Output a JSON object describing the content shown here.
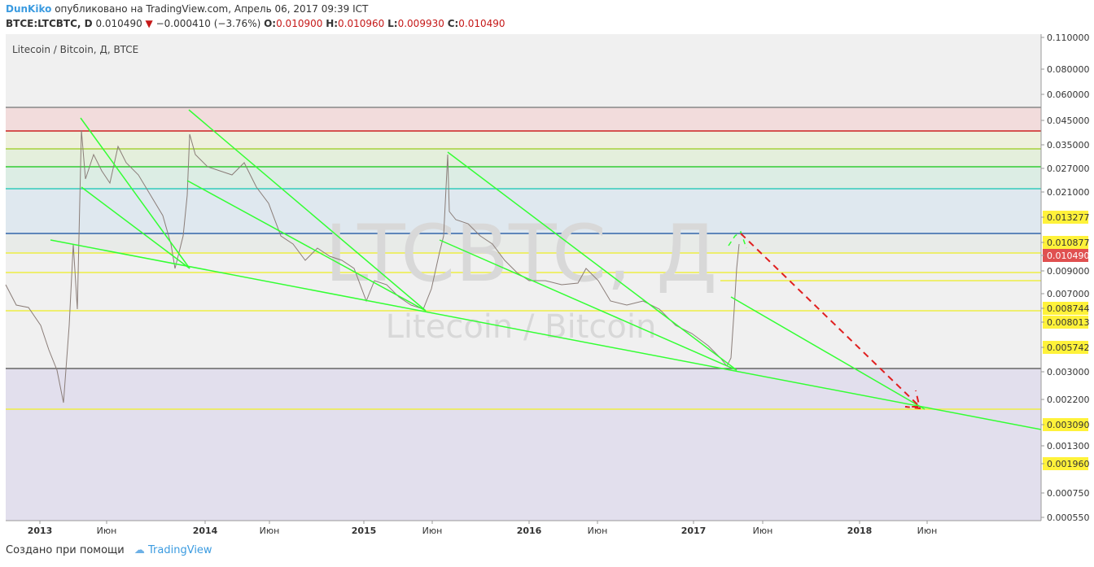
{
  "header": {
    "author": "DunKiko",
    "published": "опубликовано на TradingView.com, Апрель 06, 2017 09:39 ICT",
    "symbol": "BTCE:LTCBTC, D",
    "last": "0.010490",
    "change": "−0.000410 (−3.76%)",
    "open_label": "O:",
    "open": "0.010900",
    "high_label": "H:",
    "high": "0.010960",
    "low_label": "L:",
    "low": "0.009930",
    "close_label": "C:",
    "close": "0.010490"
  },
  "chart": {
    "legend": "Litecoin / Bitcoin, Д, BTCE",
    "watermark": "LTCBTC, Д",
    "watermark_sub": "Litecoin / Bitcoin",
    "price_labels": [
      "0.110000",
      "0.080000",
      "0.060000",
      "0.045000",
      "0.035000",
      "0.027000",
      "0.021000",
      "0.013277",
      "0.010877",
      "0.010490",
      "0.009000",
      "0.007000",
      "0.008744",
      "0.008013",
      "0.005742",
      "0.003000",
      "0.002200",
      "0.003090",
      "0.001300",
      "0.001960",
      "0.000750",
      "0.000550"
    ],
    "time_labels": [
      "2013",
      "Июн",
      "2014",
      "Июн",
      "2015",
      "Июн",
      "2016",
      "Июн",
      "2017",
      "Июн",
      "2018",
      "Июн"
    ]
  },
  "footer": {
    "text": "Создано при помощи",
    "brand": "TradingView"
  }
}
